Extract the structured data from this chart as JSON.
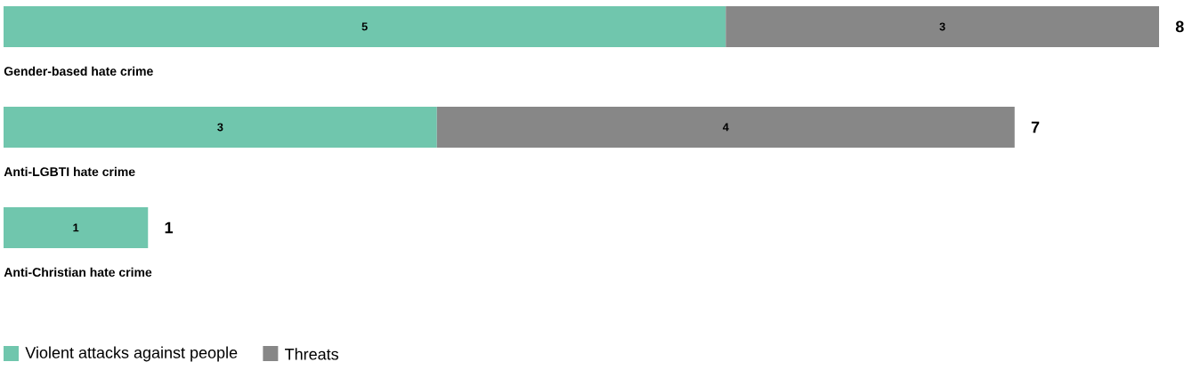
{
  "chart_data": {
    "type": "bar",
    "orientation": "horizontal",
    "stacked": true,
    "data_labels": true,
    "categories": [
      "Gender-based hate crime",
      "Anti-LGBTI hate crime",
      "Anti-Christian hate crime"
    ],
    "series": [
      {
        "name": "Violent attacks against people",
        "color": "#70c6ad",
        "values": [
          5,
          3,
          1
        ]
      },
      {
        "name": "Threats",
        "color": "#878787",
        "values": [
          3,
          4,
          null
        ]
      }
    ],
    "totals": [
      "8",
      "7",
      "1"
    ],
    "legend": "bottom left"
  }
}
